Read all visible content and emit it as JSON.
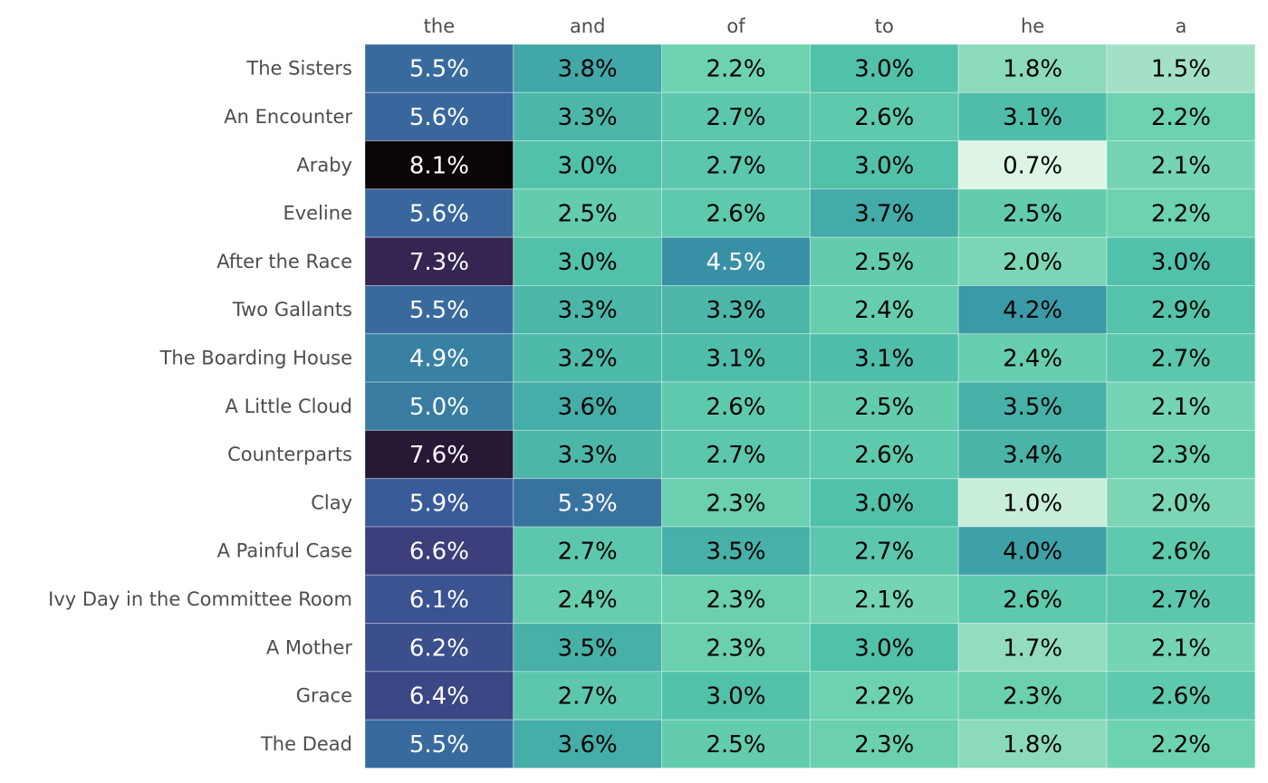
{
  "chart_data": {
    "type": "heatmap",
    "title": "",
    "xlabel": "",
    "ylabel": "",
    "columns": [
      "the",
      "and",
      "of",
      "to",
      "he",
      "a"
    ],
    "rows": [
      "The Sisters",
      "An Encounter",
      "Araby",
      "Eveline",
      "After the Race",
      "Two Gallants",
      "The Boarding House",
      "A Little Cloud",
      "Counterparts",
      "Clay",
      "A Painful Case",
      "Ivy Day in the Committee Room",
      "A Mother",
      "Grace",
      "The Dead"
    ],
    "values": [
      [
        5.5,
        3.8,
        2.2,
        3.0,
        1.8,
        1.5
      ],
      [
        5.6,
        3.3,
        2.7,
        2.6,
        3.1,
        2.2
      ],
      [
        8.1,
        3.0,
        2.7,
        3.0,
        0.7,
        2.1
      ],
      [
        5.6,
        2.5,
        2.6,
        3.7,
        2.5,
        2.2
      ],
      [
        7.3,
        3.0,
        4.5,
        2.5,
        2.0,
        3.0
      ],
      [
        5.5,
        3.3,
        3.3,
        2.4,
        4.2,
        2.9
      ],
      [
        4.9,
        3.2,
        3.1,
        3.1,
        2.4,
        2.7
      ],
      [
        5.0,
        3.6,
        2.6,
        2.5,
        3.5,
        2.1
      ],
      [
        7.6,
        3.3,
        2.7,
        2.6,
        3.4,
        2.3
      ],
      [
        5.9,
        5.3,
        2.3,
        3.0,
        1.0,
        2.0
      ],
      [
        6.6,
        2.7,
        3.5,
        2.7,
        4.0,
        2.6
      ],
      [
        6.1,
        2.4,
        2.3,
        2.1,
        2.6,
        2.7
      ],
      [
        6.2,
        3.5,
        2.3,
        3.0,
        1.7,
        2.1
      ],
      [
        6.4,
        2.7,
        3.0,
        2.2,
        2.3,
        2.6
      ],
      [
        5.5,
        3.6,
        2.5,
        2.3,
        1.8,
        2.2
      ]
    ],
    "value_format": "0.0%",
    "colormap": "mako_r",
    "color_range": [
      0.7,
      8.1
    ],
    "grid": false,
    "legend": "none",
    "x_axis_position": "top"
  }
}
